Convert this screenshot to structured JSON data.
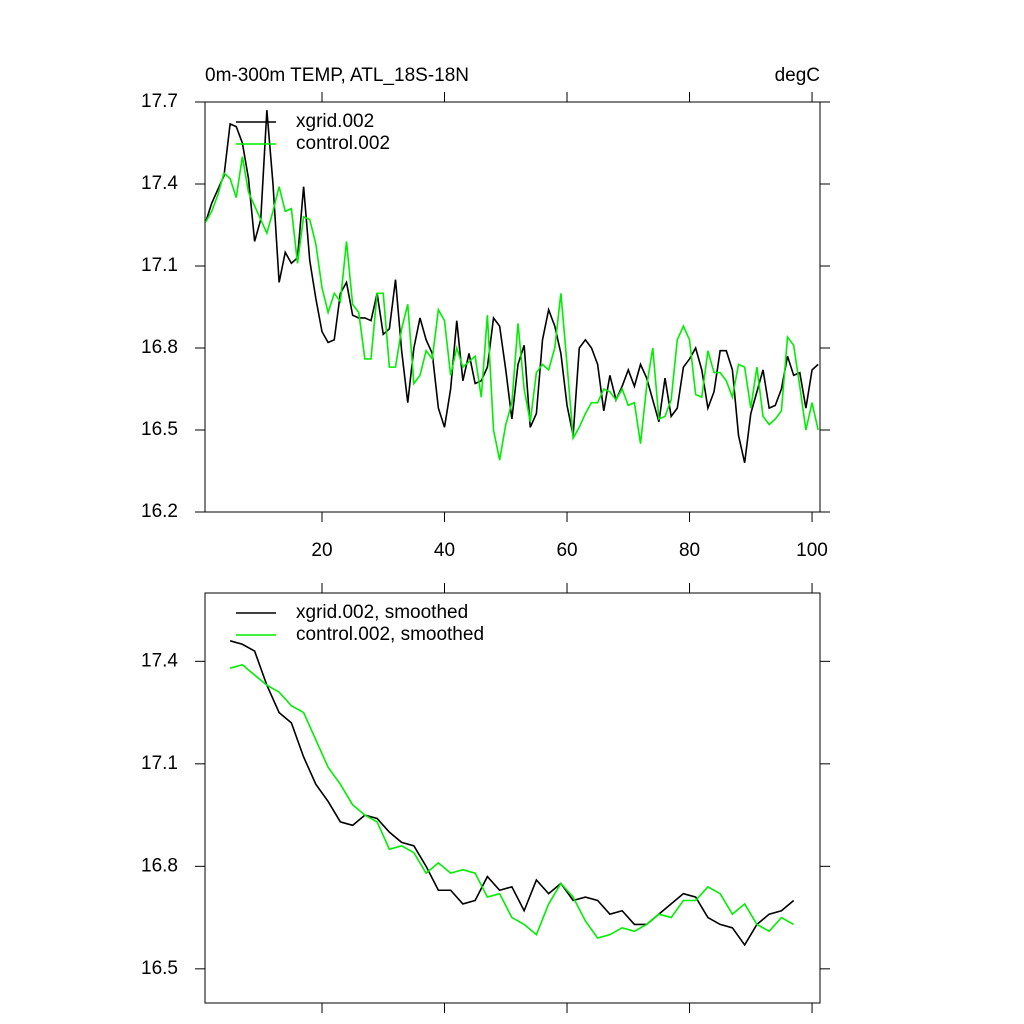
{
  "chart_data": [
    {
      "type": "line",
      "title": "0m-300m TEMP, ATL_18S-18N",
      "units": "degC",
      "x": [
        1,
        2,
        3,
        4,
        5,
        6,
        7,
        8,
        9,
        10,
        11,
        12,
        13,
        14,
        15,
        16,
        17,
        18,
        19,
        20,
        21,
        22,
        23,
        24,
        25,
        26,
        27,
        28,
        29,
        30,
        31,
        32,
        33,
        34,
        35,
        36,
        37,
        38,
        39,
        40,
        41,
        42,
        43,
        44,
        45,
        46,
        47,
        48,
        49,
        50,
        51,
        52,
        53,
        54,
        55,
        56,
        57,
        58,
        59,
        60,
        61,
        62,
        63,
        64,
        65,
        66,
        67,
        68,
        69,
        70,
        71,
        72,
        73,
        74,
        75,
        76,
        77,
        78,
        79,
        80,
        81,
        82,
        83,
        84,
        85,
        86,
        87,
        88,
        89,
        90,
        91,
        92,
        93,
        94,
        95,
        96,
        97,
        98,
        99,
        100,
        101
      ],
      "series": [
        {
          "name": "xgrid.002",
          "color": "#000000",
          "values": [
            17.26,
            17.33,
            17.38,
            17.43,
            17.62,
            17.61,
            17.55,
            17.42,
            17.19,
            17.27,
            17.67,
            17.4,
            17.04,
            17.15,
            17.11,
            17.13,
            17.39,
            17.12,
            16.98,
            16.86,
            16.82,
            16.83,
            17.0,
            17.04,
            16.92,
            16.91,
            16.91,
            16.9,
            17.0,
            16.85,
            16.87,
            17.05,
            16.79,
            16.6,
            16.8,
            16.91,
            16.83,
            16.78,
            16.58,
            16.51,
            16.65,
            16.9,
            16.68,
            16.78,
            16.67,
            16.68,
            16.73,
            16.91,
            16.88,
            16.72,
            16.54,
            16.74,
            16.81,
            16.51,
            16.56,
            16.83,
            16.94,
            16.88,
            16.78,
            16.59,
            16.48,
            16.8,
            16.83,
            16.8,
            16.74,
            16.57,
            16.7,
            16.61,
            16.66,
            16.72,
            16.66,
            16.74,
            16.69,
            16.61,
            16.53,
            16.69,
            16.55,
            16.58,
            16.73,
            16.76,
            16.8,
            16.72,
            16.58,
            16.64,
            16.79,
            16.79,
            16.72,
            16.48,
            16.38,
            16.56,
            16.64,
            16.72,
            16.58,
            16.59,
            16.65,
            16.77,
            16.7,
            16.71,
            16.58,
            16.72,
            16.74
          ]
        },
        {
          "name": "control.002",
          "color": "#00ee00",
          "values": [
            17.26,
            17.3,
            17.36,
            17.44,
            17.42,
            17.35,
            17.5,
            17.37,
            17.32,
            17.27,
            17.22,
            17.3,
            17.39,
            17.3,
            17.31,
            17.11,
            17.28,
            17.27,
            17.18,
            17.02,
            16.93,
            17.0,
            16.97,
            17.19,
            16.96,
            16.93,
            16.76,
            16.76,
            17.0,
            17.0,
            16.73,
            16.73,
            16.87,
            16.96,
            16.67,
            16.7,
            16.79,
            16.76,
            16.94,
            16.9,
            16.7,
            16.8,
            16.73,
            16.75,
            16.77,
            16.62,
            16.92,
            16.5,
            16.39,
            16.52,
            16.6,
            16.89,
            16.65,
            16.53,
            16.71,
            16.74,
            16.72,
            16.8,
            17.0,
            16.74,
            16.47,
            16.51,
            16.56,
            16.6,
            16.6,
            16.65,
            16.64,
            16.61,
            16.65,
            16.59,
            16.6,
            16.45,
            16.66,
            16.8,
            16.54,
            16.55,
            16.61,
            16.83,
            16.88,
            16.83,
            16.63,
            16.62,
            16.79,
            16.71,
            16.71,
            16.68,
            16.62,
            16.74,
            16.73,
            16.58,
            16.73,
            16.55,
            16.52,
            16.54,
            16.57,
            16.84,
            16.81,
            16.66,
            16.5,
            16.6,
            16.5
          ]
        }
      ],
      "xlim": [
        0.9,
        101.3
      ],
      "xticks": [
        20,
        40,
        60,
        80,
        100
      ],
      "show_xtick_labels": true,
      "ylim": [
        16.2,
        17.7
      ],
      "yticks": [
        16.2,
        16.5,
        16.8,
        17.1,
        17.4,
        17.7
      ],
      "legend": "upper left"
    },
    {
      "type": "line",
      "x": [
        5,
        7,
        9,
        11,
        13,
        15,
        17,
        19,
        21,
        23,
        25,
        27,
        29,
        31,
        33,
        35,
        37,
        39,
        41,
        43,
        45,
        47,
        49,
        51,
        53,
        55,
        57,
        59,
        61,
        63,
        65,
        67,
        69,
        71,
        73,
        75,
        77,
        79,
        81,
        83,
        85,
        87,
        89,
        91,
        93,
        95,
        97
      ],
      "series": [
        {
          "name": "xgrid.002, smoothed",
          "color": "#000000",
          "values": [
            17.46,
            17.45,
            17.43,
            17.33,
            17.25,
            17.22,
            17.12,
            17.04,
            16.99,
            16.93,
            16.92,
            16.95,
            16.94,
            16.9,
            16.87,
            16.86,
            16.8,
            16.73,
            16.73,
            16.69,
            16.7,
            16.77,
            16.73,
            16.74,
            16.67,
            16.76,
            16.72,
            16.75,
            16.7,
            16.71,
            16.7,
            16.66,
            16.67,
            16.63,
            16.63,
            16.66,
            16.69,
            16.72,
            16.71,
            16.65,
            16.63,
            16.62,
            16.57,
            16.63,
            16.66,
            16.67,
            16.7
          ]
        },
        {
          "name": "control.002, smoothed",
          "color": "#00ee00",
          "values": [
            17.38,
            17.39,
            17.36,
            17.33,
            17.31,
            17.27,
            17.25,
            17.17,
            17.09,
            17.04,
            16.98,
            16.95,
            16.93,
            16.85,
            16.86,
            16.84,
            16.78,
            16.81,
            16.78,
            16.79,
            16.78,
            16.71,
            16.72,
            16.65,
            16.63,
            16.6,
            16.69,
            16.75,
            16.71,
            16.64,
            16.59,
            16.6,
            16.62,
            16.61,
            16.63,
            16.66,
            16.65,
            16.7,
            16.7,
            16.74,
            16.72,
            16.66,
            16.69,
            16.63,
            16.61,
            16.65,
            16.63
          ]
        }
      ],
      "xlim": [
        0.9,
        101.3
      ],
      "xticks": [
        20,
        40,
        60,
        80,
        100
      ],
      "show_xtick_labels": false,
      "ylim": [
        16.4,
        17.6
      ],
      "yticks": [
        16.5,
        16.8,
        17.1,
        17.4
      ],
      "legend": "upper left"
    }
  ]
}
